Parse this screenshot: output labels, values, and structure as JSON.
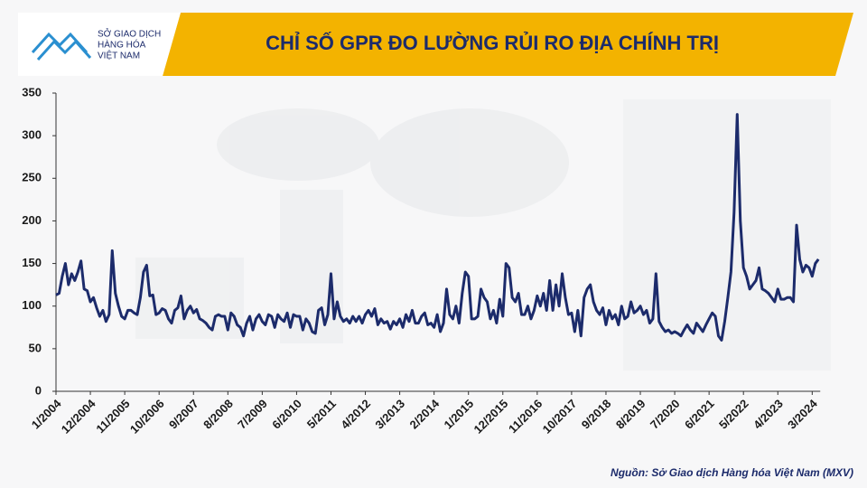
{
  "header": {
    "logo_lines": [
      "SỞ GIAO DỊCH",
      "HÀNG HÓA",
      "VIỆT NAM"
    ]
  },
  "chart_data": {
    "type": "line",
    "title": "CHỈ SỐ GPR ĐO LƯỜNG RỦI RO ĐỊA CHÍNH TRỊ",
    "source": "Nguồn: Sở Giao dịch Hàng hóa Việt Nam (MXV)",
    "categories": [
      "1/2004",
      null,
      null,
      null,
      null,
      null,
      null,
      null,
      null,
      null,
      null,
      "12/2004",
      null,
      null,
      null,
      null,
      null,
      null,
      null,
      null,
      null,
      null,
      "11/2005",
      null,
      null,
      null,
      null,
      null,
      null,
      null,
      null,
      null,
      null,
      "10/2006",
      null,
      null,
      null,
      null,
      null,
      null,
      null,
      null,
      null,
      null,
      "9/2007",
      null,
      null,
      null,
      null,
      null,
      null,
      null,
      null,
      null,
      null,
      "8/2008",
      null,
      null,
      null,
      null,
      null,
      null,
      null,
      null,
      null,
      null,
      "7/2009",
      null,
      null,
      null,
      null,
      null,
      null,
      null,
      null,
      null,
      null,
      "6/2010",
      null,
      null,
      null,
      null,
      null,
      null,
      null,
      null,
      null,
      null,
      "5/2011",
      null,
      null,
      null,
      null,
      null,
      null,
      null,
      null,
      null,
      null,
      "4/2012",
      null,
      null,
      null,
      null,
      null,
      null,
      null,
      null,
      null,
      null,
      "3/2013",
      null,
      null,
      null,
      null,
      null,
      null,
      null,
      null,
      null,
      null,
      "2/2014",
      null,
      null,
      null,
      null,
      null,
      null,
      null,
      null,
      null,
      null,
      "1/2015",
      null,
      null,
      null,
      null,
      null,
      null,
      null,
      null,
      null,
      null,
      "12/2015",
      null,
      null,
      null,
      null,
      null,
      null,
      null,
      null,
      null,
      null,
      "11/2016",
      null,
      null,
      null,
      null,
      null,
      null,
      null,
      null,
      null,
      null,
      "10/2017",
      null,
      null,
      null,
      null,
      null,
      null,
      null,
      null,
      null,
      null,
      "9/2018",
      null,
      null,
      null,
      null,
      null,
      null,
      null,
      null,
      null,
      null,
      "8/2019",
      null,
      null,
      null,
      null,
      null,
      null,
      null,
      null,
      null,
      null,
      "7/2020",
      null,
      null,
      null,
      null,
      null,
      null,
      null,
      null,
      null,
      null,
      "6/2021",
      null,
      null,
      null,
      null,
      null,
      null,
      null,
      null,
      null,
      null,
      "5/2022",
      null,
      null,
      null,
      null,
      null,
      null,
      null,
      null,
      null,
      null,
      "4/2023",
      null,
      null,
      null,
      null,
      null,
      null,
      null,
      null,
      null,
      null,
      "3/2024",
      null,
      null
    ],
    "series": [
      {
        "name": "GPR",
        "color": "#1c2b6b",
        "values": [
          113,
          115,
          135,
          150,
          125,
          138,
          130,
          140,
          153,
          120,
          118,
          105,
          110,
          98,
          88,
          95,
          82,
          90,
          165,
          115,
          100,
          88,
          85,
          95,
          95,
          92,
          90,
          110,
          140,
          148,
          112,
          113,
          90,
          92,
          97,
          95,
          85,
          80,
          95,
          98,
          112,
          85,
          95,
          100,
          92,
          96,
          85,
          83,
          80,
          75,
          72,
          88,
          90,
          88,
          88,
          72,
          92,
          88,
          78,
          75,
          65,
          80,
          88,
          72,
          85,
          90,
          82,
          78,
          90,
          88,
          75,
          90,
          85,
          82,
          92,
          75,
          90,
          88,
          88,
          72,
          85,
          80,
          70,
          68,
          95,
          98,
          78,
          90,
          138,
          85,
          105,
          88,
          82,
          85,
          80,
          88,
          82,
          88,
          80,
          90,
          95,
          88,
          97,
          78,
          85,
          80,
          82,
          73,
          82,
          78,
          85,
          75,
          90,
          82,
          95,
          80,
          80,
          88,
          92,
          78,
          80,
          75,
          90,
          70,
          80,
          120,
          90,
          85,
          100,
          80,
          115,
          140,
          135,
          85,
          85,
          88,
          120,
          110,
          105,
          85,
          95,
          80,
          108,
          88,
          150,
          145,
          110,
          105,
          115,
          90,
          90,
          100,
          85,
          95,
          112,
          100,
          115,
          95,
          130,
          95,
          125,
          100,
          138,
          110,
          90,
          92,
          70,
          95,
          65,
          110,
          120,
          125,
          105,
          95,
          90,
          98,
          78,
          95,
          85,
          90,
          78,
          100,
          85,
          88,
          105,
          92,
          95,
          100,
          90,
          95,
          80,
          85,
          138,
          82,
          75,
          70,
          72,
          68,
          70,
          68,
          65,
          72,
          78,
          72,
          68,
          80,
          75,
          70,
          78,
          85,
          92,
          88,
          65,
          60,
          82,
          110,
          140,
          210,
          325,
          200,
          145,
          135,
          120,
          125,
          130,
          145,
          120,
          118,
          115,
          110,
          105,
          120,
          108,
          108,
          110,
          110,
          105,
          195,
          155,
          140,
          148,
          145,
          135,
          150,
          155
        ]
      }
    ],
    "ylim": [
      0,
      350
    ],
    "yticks": [
      0,
      50,
      100,
      150,
      200,
      250,
      300,
      350
    ],
    "grid": false
  }
}
